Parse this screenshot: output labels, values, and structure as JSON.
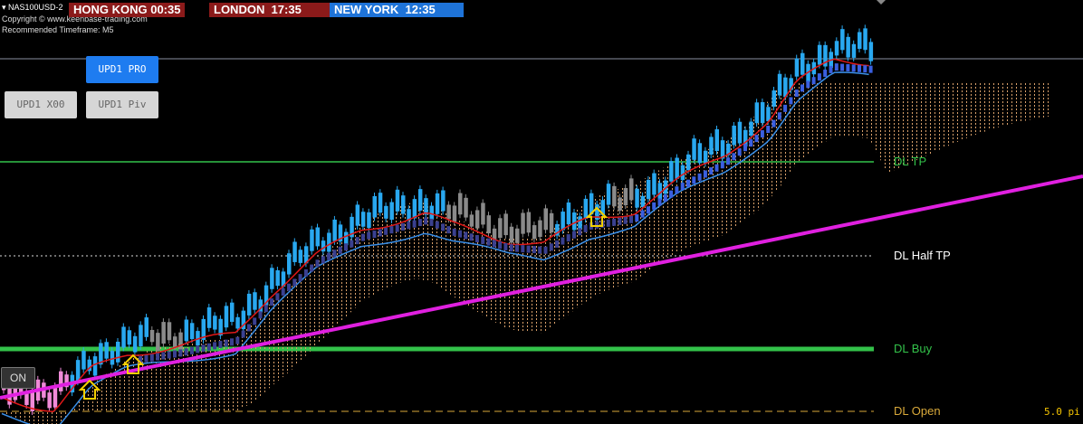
{
  "header": {
    "symbol": "NAS100USD-2",
    "copyright": "Copyright © www.keenbase-trading.com",
    "timeframe": "Recommended Timeframe: M5"
  },
  "clocks": [
    "HONG KONG 00:35",
    "LONDON  17:35",
    "NEW YORK  12:35"
  ],
  "buttons": [
    "UPD1 PRO",
    "UPD1 X00",
    "UPD1 Piv"
  ],
  "toggle": "ON",
  "levels": [
    "DL TP",
    "DL Half TP",
    "DL Buy",
    "DL Open"
  ],
  "footer_value": "5.0 pi"
}
